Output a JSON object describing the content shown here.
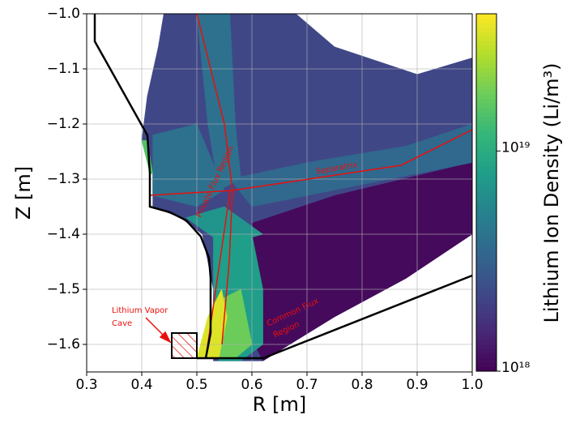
{
  "chart_data": {
    "type": "heatmap",
    "xlabel": "R [m]",
    "ylabel": "Z [m]",
    "colorbar_label": "Lithium Ion Density (Li/m³)",
    "xlim": [
      0.3,
      1.0
    ],
    "ylim": [
      -1.65,
      -1.0
    ],
    "xticks": [
      0.3,
      0.4,
      0.5,
      0.6,
      0.7,
      0.8,
      0.9,
      {
        "value": 1.0,
        "label": "1.0"
      }
    ],
    "yticks": [
      {
        "value": -1.0,
        "label": "−1.0"
      },
      {
        "value": -1.1,
        "label": "−1.1"
      },
      {
        "value": -1.2,
        "label": "−1.2"
      },
      {
        "value": -1.3,
        "label": "−1.3"
      },
      {
        "value": -1.4,
        "label": "−1.4"
      },
      {
        "value": -1.5,
        "label": "−1.5"
      },
      {
        "value": -1.6,
        "label": "−1.6"
      }
    ],
    "zlim": [
      1e+18,
      4.2e+19
    ],
    "zscale": "log",
    "colormap": "viridis",
    "zticks": [
      {
        "value": 1e+19,
        "label": "10¹⁹"
      },
      {
        "value": 1e+18,
        "label": "10¹⁸"
      }
    ],
    "grid": true,
    "regions": [
      {
        "density": 2.2e+18,
        "points": [
          [
            0.44,
            -1.0
          ],
          [
            0.68,
            -1.0
          ],
          [
            0.75,
            -1.06
          ],
          [
            0.9,
            -1.11
          ],
          [
            1.0,
            -1.08
          ],
          [
            1.0,
            -1.4
          ],
          [
            0.88,
            -1.48
          ],
          [
            0.75,
            -1.55
          ],
          [
            0.62,
            -1.63
          ],
          [
            0.53,
            -1.63
          ],
          [
            0.53,
            -1.5
          ],
          [
            0.51,
            -1.4
          ],
          [
            0.47,
            -1.37
          ],
          [
            0.42,
            -1.35
          ],
          [
            0.42,
            -1.29
          ],
          [
            0.4,
            -1.23
          ],
          [
            0.41,
            -1.15
          ],
          [
            0.43,
            -1.06
          ]
        ]
      },
      {
        "density": 1.1e+18,
        "points": [
          [
            0.6,
            -1.38
          ],
          [
            0.75,
            -1.33
          ],
          [
            1.0,
            -1.27
          ],
          [
            1.0,
            -1.4
          ],
          [
            0.88,
            -1.48
          ],
          [
            0.75,
            -1.55
          ],
          [
            0.62,
            -1.63
          ],
          [
            0.58,
            -1.55
          ]
        ]
      },
      {
        "density": 3.5e+18,
        "points": [
          [
            0.56,
            -1.3
          ],
          [
            0.7,
            -1.27
          ],
          [
            0.88,
            -1.24
          ],
          [
            1.0,
            -1.2
          ],
          [
            1.0,
            -1.27
          ],
          [
            0.75,
            -1.32
          ],
          [
            0.6,
            -1.35
          ]
        ]
      },
      {
        "density": 4e+18,
        "points": [
          [
            0.5,
            -1.0
          ],
          [
            0.56,
            -1.0
          ],
          [
            0.57,
            -1.2
          ],
          [
            0.58,
            -1.3
          ],
          [
            0.54,
            -1.32
          ],
          [
            0.52,
            -1.2
          ]
        ]
      },
      {
        "density": 4e+18,
        "points": [
          [
            0.42,
            -1.22
          ],
          [
            0.5,
            -1.2
          ],
          [
            0.55,
            -1.32
          ],
          [
            0.5,
            -1.35
          ],
          [
            0.42,
            -1.33
          ]
        ]
      },
      {
        "density": 7e+18,
        "points": [
          [
            0.48,
            -1.37
          ],
          [
            0.55,
            -1.35
          ],
          [
            0.62,
            -1.4
          ],
          [
            0.55,
            -1.42
          ]
        ]
      },
      {
        "density": 8e+18,
        "points": [
          [
            0.53,
            -1.4
          ],
          [
            0.6,
            -1.4
          ],
          [
            0.62,
            -1.5
          ],
          [
            0.62,
            -1.6
          ],
          [
            0.58,
            -1.63
          ],
          [
            0.54,
            -1.63
          ],
          [
            0.53,
            -1.5
          ]
        ]
      },
      {
        "density": 1.8e+19,
        "points": [
          [
            0.54,
            -1.52
          ],
          [
            0.58,
            -1.5
          ],
          [
            0.6,
            -1.6
          ],
          [
            0.57,
            -1.625
          ],
          [
            0.53,
            -1.625
          ]
        ]
      },
      {
        "density": 3.5e+19,
        "points": [
          [
            0.5,
            -1.625
          ],
          [
            0.52,
            -1.55
          ],
          [
            0.545,
            -1.5
          ],
          [
            0.555,
            -1.55
          ],
          [
            0.54,
            -1.625
          ]
        ]
      },
      {
        "density": 1.5e+19,
        "points": [
          [
            0.4,
            -1.23
          ],
          [
            0.41,
            -1.23
          ],
          [
            0.42,
            -1.29
          ],
          [
            0.415,
            -1.29
          ]
        ]
      }
    ],
    "annotations": {
      "separatrix": "Separatrix",
      "cave": [
        "Lithium Vapor",
        "Cave"
      ],
      "common_flux": [
        "Common Flux",
        "Region"
      ],
      "private_flux": "Private Flux Region"
    }
  }
}
